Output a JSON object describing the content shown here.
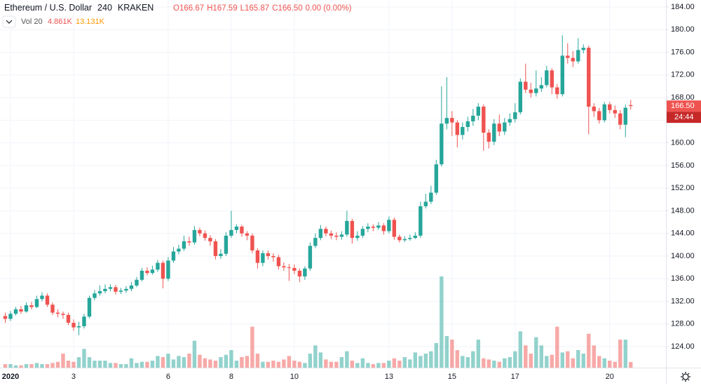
{
  "header": {
    "symbol": "Ethereum / U.S. Dollar",
    "interval": "240",
    "exchange": "KRAKEN",
    "ohlc": [
      "O166.67",
      "H167.59",
      "L165.87",
      "C166.50",
      "0.00 (0.00%)"
    ],
    "volume_name": "Vol 20",
    "volume_value": "4.861K",
    "volume_ma": "13.131K"
  },
  "chart_data": {
    "type": "candlestick",
    "up_color": "#26a69a",
    "down_color": "#ef5350",
    "xlim": [
      -1,
      125.7
    ],
    "ylim": [
      120.28,
      185.24
    ],
    "xticks": [
      {
        "value": 1,
        "label": "2020"
      },
      {
        "value": 13,
        "label": "3"
      },
      {
        "value": 31,
        "label": "6"
      },
      {
        "value": 43,
        "label": "8"
      },
      {
        "value": 55,
        "label": "10"
      },
      {
        "value": 73,
        "label": "13"
      },
      {
        "value": 85,
        "label": "15"
      },
      {
        "value": 97,
        "label": "17"
      },
      {
        "value": 115,
        "label": "20"
      }
    ],
    "yticks": [
      {
        "value": 124,
        "label": "124.00"
      },
      {
        "value": 128,
        "label": "128.00"
      },
      {
        "value": 132,
        "label": "132.00"
      },
      {
        "value": 136,
        "label": "136.00"
      },
      {
        "value": 140,
        "label": "140.00"
      },
      {
        "value": 144,
        "label": "144.00"
      },
      {
        "value": 148,
        "label": "148.00"
      },
      {
        "value": 152,
        "label": "152.00"
      },
      {
        "value": 156,
        "label": "156.00"
      },
      {
        "value": 160,
        "label": "160.00"
      },
      {
        "value": 164,
        "label": "164.00"
      },
      {
        "value": 168,
        "label": "168.00"
      },
      {
        "value": 172,
        "label": "172.00"
      },
      {
        "value": 176,
        "label": "176.00"
      },
      {
        "value": 180,
        "label": "180.00"
      },
      {
        "value": 184,
        "label": "184.00"
      }
    ],
    "grid": true,
    "price_label": "166.50",
    "countdown": "24:44",
    "open": [
      129.4,
      128.9,
      129.8,
      130.6,
      130.2,
      131.3,
      131.0,
      132.4,
      133.0,
      131.4,
      130.0,
      129.8,
      129.6,
      128.2,
      127.4,
      127.6,
      129.3,
      132.6,
      133.4,
      133.8,
      134.2,
      134.5,
      133.7,
      133.9,
      134.2,
      134.8,
      135.8,
      137.4,
      137.0,
      137.6,
      138.8,
      136.0,
      139.2,
      140.8,
      141.3,
      142.6,
      142.4,
      144.6,
      144.0,
      143.2,
      142.6,
      140.0,
      140.4,
      143.6,
      144.6,
      145.2,
      144.0,
      143.6,
      141.0,
      138.8,
      140.5,
      140.0,
      139.8,
      138.2,
      138.0,
      137.9,
      137.4,
      136.4,
      137.8,
      141.8,
      143.2,
      144.8,
      144.0,
      143.6,
      143.4,
      143.8,
      146.2,
      143.2,
      143.6,
      144.8,
      145.2,
      145.0,
      145.4,
      144.4,
      146.4,
      143.4,
      142.8,
      143.0,
      143.2,
      143.6,
      148.8,
      149.6,
      151.2,
      156.2,
      163.4,
      164.4,
      163.6,
      161.4,
      162.8,
      163.8,
      164.8,
      166.4,
      161.8,
      160.2,
      163.4,
      162.0,
      163.6,
      164.2,
      165.4,
      170.8,
      169.4,
      168.8,
      169.6,
      170.2,
      172.8,
      169.8,
      168.6,
      175.4,
      175.0,
      174.4,
      176.4,
      176.8,
      166.4,
      165.6,
      164.0,
      166.8,
      165.8,
      165.2,
      163.2,
      166.67
    ],
    "high": [
      130.0,
      130.3,
      131.0,
      131.2,
      131.8,
      131.9,
      133.0,
      133.6,
      133.4,
      131.8,
      130.6,
      130.2,
      130.0,
      128.8,
      128.4,
      129.8,
      133.0,
      134.0,
      134.8,
      135.0,
      135.0,
      134.9,
      134.4,
      134.7,
      135.4,
      136.3,
      137.9,
      138.0,
      138.3,
      139.3,
      139.2,
      139.8,
      141.6,
      142.0,
      143.6,
      143.4,
      145.3,
      145.0,
      144.5,
      143.7,
      143.0,
      141.2,
      144.2,
      148.0,
      145.6,
      145.5,
      144.4,
      144.0,
      141.4,
      141.0,
      141.0,
      140.5,
      140.2,
      138.9,
      138.6,
      138.5,
      137.8,
      138.2,
      142.4,
      144.0,
      145.5,
      145.2,
      144.5,
      144.2,
      144.4,
      148.0,
      146.6,
      144.4,
      145.3,
      145.8,
      145.6,
      146.0,
      145.8,
      147.0,
      146.8,
      143.8,
      143.5,
      143.8,
      144.2,
      149.6,
      151.0,
      152.4,
      157.0,
      170.0,
      171.6,
      165.6,
      164.0,
      163.6,
      164.6,
      166.0,
      167.0,
      166.8,
      162.4,
      164.2,
      165.0,
      164.4,
      165.2,
      167.0,
      171.4,
      174.0,
      170.6,
      172.8,
      171.6,
      173.6,
      173.2,
      170.4,
      179.0,
      177.6,
      176.2,
      178.5,
      177.4,
      177.2,
      167.0,
      166.2,
      167.2,
      167.2,
      166.6,
      165.8,
      166.8,
      167.59
    ],
    "low": [
      128.2,
      128.5,
      129.5,
      129.8,
      130.0,
      130.6,
      130.8,
      132.0,
      131.0,
      129.6,
      129.2,
      128.9,
      127.8,
      126.8,
      126.0,
      127.2,
      129.0,
      132.2,
      133.0,
      133.4,
      133.8,
      133.2,
      133.3,
      133.5,
      133.8,
      134.5,
      135.5,
      136.6,
      136.7,
      137.2,
      134.3,
      135.6,
      138.8,
      140.3,
      140.9,
      141.8,
      142.0,
      143.5,
      142.7,
      141.8,
      139.4,
      139.5,
      140.0,
      143.2,
      144.0,
      143.4,
      142.8,
      140.5,
      137.8,
      138.2,
      139.4,
      139.0,
      137.6,
      137.4,
      135.6,
      136.8,
      135.4,
      135.8,
      137.4,
      141.4,
      142.8,
      143.5,
      143.0,
      142.8,
      142.9,
      143.4,
      142.2,
      142.7,
      143.2,
      144.2,
      144.4,
      144.6,
      143.8,
      144.0,
      142.9,
      142.4,
      142.5,
      142.7,
      143.0,
      143.2,
      148.4,
      149.2,
      150.8,
      155.8,
      162.4,
      161.2,
      159.2,
      160.6,
      162.0,
      163.0,
      164.0,
      158.6,
      159.0,
      159.6,
      161.2,
      161.4,
      163.0,
      163.6,
      165.0,
      168.8,
      168.0,
      168.2,
      169.0,
      169.8,
      168.6,
      167.8,
      168.2,
      174.0,
      173.4,
      174.0,
      175.8,
      161.5,
      164.6,
      163.4,
      163.6,
      165.2,
      164.4,
      162.4,
      161.0,
      165.87
    ],
    "close": [
      128.9,
      129.8,
      130.6,
      130.2,
      131.3,
      131.0,
      132.4,
      133.0,
      131.4,
      130.0,
      129.8,
      129.6,
      128.2,
      127.4,
      127.6,
      129.3,
      132.6,
      133.4,
      133.8,
      134.2,
      134.5,
      133.7,
      133.9,
      134.2,
      134.8,
      135.8,
      137.4,
      137.0,
      137.6,
      138.8,
      136.0,
      139.2,
      140.8,
      141.3,
      142.6,
      142.4,
      144.6,
      144.0,
      143.2,
      142.6,
      140.0,
      140.4,
      143.6,
      144.6,
      145.2,
      144.0,
      143.6,
      141.0,
      138.8,
      140.5,
      140.0,
      139.8,
      138.2,
      138.0,
      137.9,
      137.4,
      136.4,
      137.8,
      141.8,
      143.2,
      144.8,
      144.0,
      143.6,
      143.4,
      143.8,
      146.2,
      143.2,
      143.6,
      144.8,
      145.2,
      145.0,
      145.4,
      144.4,
      146.4,
      143.4,
      142.8,
      143.0,
      143.2,
      143.6,
      148.8,
      149.6,
      151.2,
      156.2,
      163.4,
      164.4,
      163.6,
      161.4,
      162.8,
      163.8,
      164.8,
      166.4,
      161.8,
      160.2,
      163.4,
      162.0,
      163.6,
      164.2,
      165.4,
      170.8,
      169.4,
      168.8,
      169.6,
      170.2,
      172.8,
      169.8,
      168.6,
      175.4,
      175.0,
      174.4,
      176.4,
      176.8,
      166.4,
      165.6,
      164.0,
      166.8,
      165.8,
      165.2,
      163.2,
      166.2,
      166.5
    ],
    "volume": [
      3,
      3,
      2,
      2,
      3,
      3,
      4,
      3,
      3,
      4,
      5,
      12,
      6,
      5,
      9,
      16,
      9,
      6,
      6,
      6,
      4,
      4,
      3,
      3,
      8,
      4,
      5,
      5,
      6,
      10,
      9,
      12,
      7,
      10,
      9,
      12,
      23,
      11,
      8,
      7,
      6,
      9,
      11,
      15,
      6,
      9,
      10,
      35,
      12,
      5,
      5,
      6,
      5,
      7,
      10,
      6,
      5,
      4,
      12,
      19,
      13,
      7,
      5,
      5,
      9,
      14,
      6,
      4,
      8,
      4,
      3,
      4,
      4,
      6,
      8,
      6,
      9,
      7,
      13,
      10,
      12,
      14,
      21,
      78,
      27,
      24,
      15,
      10,
      9,
      14,
      24,
      8,
      7,
      6,
      5,
      8,
      9,
      14,
      31,
      19,
      12,
      26,
      19,
      10,
      11,
      35,
      13,
      14,
      8,
      15,
      12,
      29,
      19,
      10,
      8,
      6,
      5,
      24,
      24,
      4.861
    ]
  }
}
